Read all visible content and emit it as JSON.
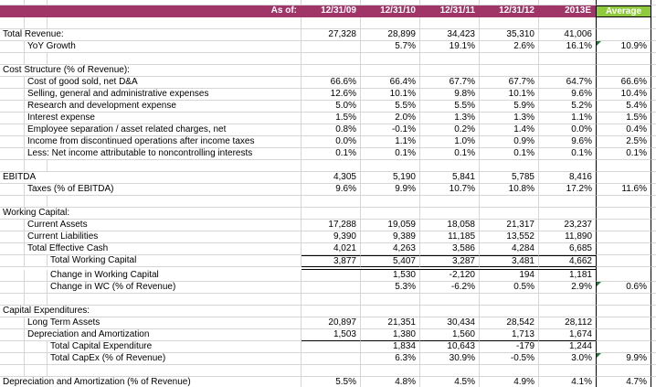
{
  "colors": {
    "header_bg": "#A03568",
    "average_header_bg": "#8FC93C",
    "error_indicator_green": "#1E7B34"
  },
  "header": {
    "as_of_label": "As of:",
    "periods": [
      "12/31/09",
      "12/31/10",
      "12/31/11",
      "12/31/12",
      "2013E"
    ],
    "average_label": "Average"
  },
  "rows": [
    {
      "type": "toprow"
    },
    {
      "type": "colheader"
    },
    {
      "type": "blank"
    },
    {
      "type": "data",
      "label": "Total Revenue:",
      "indent": 0,
      "values": [
        "27,328",
        "28,899",
        "34,423",
        "35,310",
        "41,006"
      ],
      "average": ""
    },
    {
      "type": "data",
      "label": "YoY Growth",
      "indent": 1,
      "values": [
        "",
        "5.7%",
        "19.1%",
        "2.6%",
        "16.1%"
      ],
      "average": "10.9%",
      "indicator": true
    },
    {
      "type": "blank"
    },
    {
      "type": "data",
      "label": "Cost Structure (% of Revenue):",
      "indent": 0,
      "values": [
        "",
        "",
        "",
        "",
        ""
      ],
      "average": ""
    },
    {
      "type": "data",
      "label": "Cost of good sold, net D&A",
      "indent": 1,
      "values": [
        "66.6%",
        "66.4%",
        "67.7%",
        "67.7%",
        "64.7%"
      ],
      "average": "66.6%"
    },
    {
      "type": "data",
      "label": "Selling, general and administrative expenses",
      "indent": 1,
      "values": [
        "12.6%",
        "10.1%",
        "9.8%",
        "10.1%",
        "9.6%"
      ],
      "average": "10.4%"
    },
    {
      "type": "data",
      "label": "Research and development expense",
      "indent": 1,
      "values": [
        "5.0%",
        "5.5%",
        "5.5%",
        "5.9%",
        "5.2%"
      ],
      "average": "5.4%"
    },
    {
      "type": "data",
      "label": "Interest expense",
      "indent": 1,
      "values": [
        "1.5%",
        "2.0%",
        "1.3%",
        "1.3%",
        "1.1%"
      ],
      "average": "1.5%"
    },
    {
      "type": "data",
      "label": "Employee separation / asset related charges, net",
      "indent": 1,
      "values": [
        "0.8%",
        "-0.1%",
        "0.2%",
        "1.4%",
        "0.0%"
      ],
      "average": "0.4%"
    },
    {
      "type": "data",
      "label": "Income from discontinued operations after income taxes",
      "indent": 1,
      "values": [
        "0.0%",
        "1.1%",
        "1.0%",
        "0.9%",
        "9.6%"
      ],
      "average": "2.5%"
    },
    {
      "type": "data",
      "label": "Less: Net income attributable to noncontrolling interests",
      "indent": 1,
      "values": [
        "0.1%",
        "0.1%",
        "0.1%",
        "0.1%",
        "0.1%"
      ],
      "average": "0.1%"
    },
    {
      "type": "blank"
    },
    {
      "type": "data",
      "label": "EBITDA",
      "indent": 0,
      "values": [
        "4,305",
        "5,190",
        "5,841",
        "5,785",
        "8,416"
      ],
      "average": ""
    },
    {
      "type": "data",
      "label": "Taxes (% of EBITDA)",
      "indent": 1,
      "values": [
        "9.6%",
        "9.9%",
        "10.7%",
        "10.8%",
        "17.2%"
      ],
      "average": "11.6%"
    },
    {
      "type": "blank"
    },
    {
      "type": "data",
      "label": "Working Capital:",
      "indent": 0,
      "values": [
        "",
        "",
        "",
        "",
        ""
      ],
      "average": ""
    },
    {
      "type": "data",
      "label": "Current Assets",
      "indent": 1,
      "values": [
        "17,288",
        "19,059",
        "18,058",
        "21,317",
        "23,237"
      ],
      "average": ""
    },
    {
      "type": "data",
      "label": "Current Liabilities",
      "indent": 1,
      "values": [
        "9,390",
        "9,389",
        "11,185",
        "13,552",
        "11,890"
      ],
      "average": ""
    },
    {
      "type": "data",
      "label": "Total Effective Cash",
      "indent": 1,
      "values": [
        "4,021",
        "4,263",
        "3,586",
        "4,284",
        "6,685"
      ],
      "average": ""
    },
    {
      "type": "data",
      "label": "Total Working Capital",
      "indent": 2,
      "values": [
        "3,877",
        "5,407",
        "3,287",
        "3,481",
        "4,662"
      ],
      "average": "",
      "border_top": true,
      "border_bottom": true
    },
    {
      "type": "spacer"
    },
    {
      "type": "data",
      "label": "Change in Working Capital",
      "indent": 2,
      "values": [
        "",
        "1,530",
        "-2,120",
        "194",
        "1,181"
      ],
      "average": ""
    },
    {
      "type": "data",
      "label": "Change in WC (% of Revenue)",
      "indent": 2,
      "values": [
        "",
        "5.3%",
        "-6.2%",
        "0.5%",
        "2.9%"
      ],
      "average": "0.6%",
      "indicator": true
    },
    {
      "type": "blank"
    },
    {
      "type": "data",
      "label": "Capital Expenditures:",
      "indent": 0,
      "values": [
        "",
        "",
        "",
        "",
        ""
      ],
      "average": ""
    },
    {
      "type": "data",
      "label": "Long Term Assets",
      "indent": 1,
      "values": [
        "20,897",
        "21,351",
        "30,434",
        "28,542",
        "28,112"
      ],
      "average": ""
    },
    {
      "type": "data",
      "label": "Depreciation and Amortization",
      "indent": 1,
      "values": [
        "1,503",
        "1,380",
        "1,560",
        "1,713",
        "1,674"
      ],
      "average": "",
      "border_bottom": true
    },
    {
      "type": "data",
      "label": "Total Capital Expenditure",
      "indent": 2,
      "values": [
        "",
        "1,834",
        "10,643",
        "-179",
        "1,244"
      ],
      "average": ""
    },
    {
      "type": "data",
      "label": "Total CapEx (% of Revenue)",
      "indent": 2,
      "values": [
        "",
        "6.3%",
        "30.9%",
        "-0.5%",
        "3.0%"
      ],
      "average": "9.9%",
      "indicator": true
    },
    {
      "type": "blank"
    },
    {
      "type": "data",
      "label": "Depreciation and Amortization (% of Revenue)",
      "indent": 0,
      "values": [
        "5.5%",
        "4.8%",
        "4.5%",
        "4.9%",
        "4.1%"
      ],
      "average": "4.7%"
    }
  ]
}
